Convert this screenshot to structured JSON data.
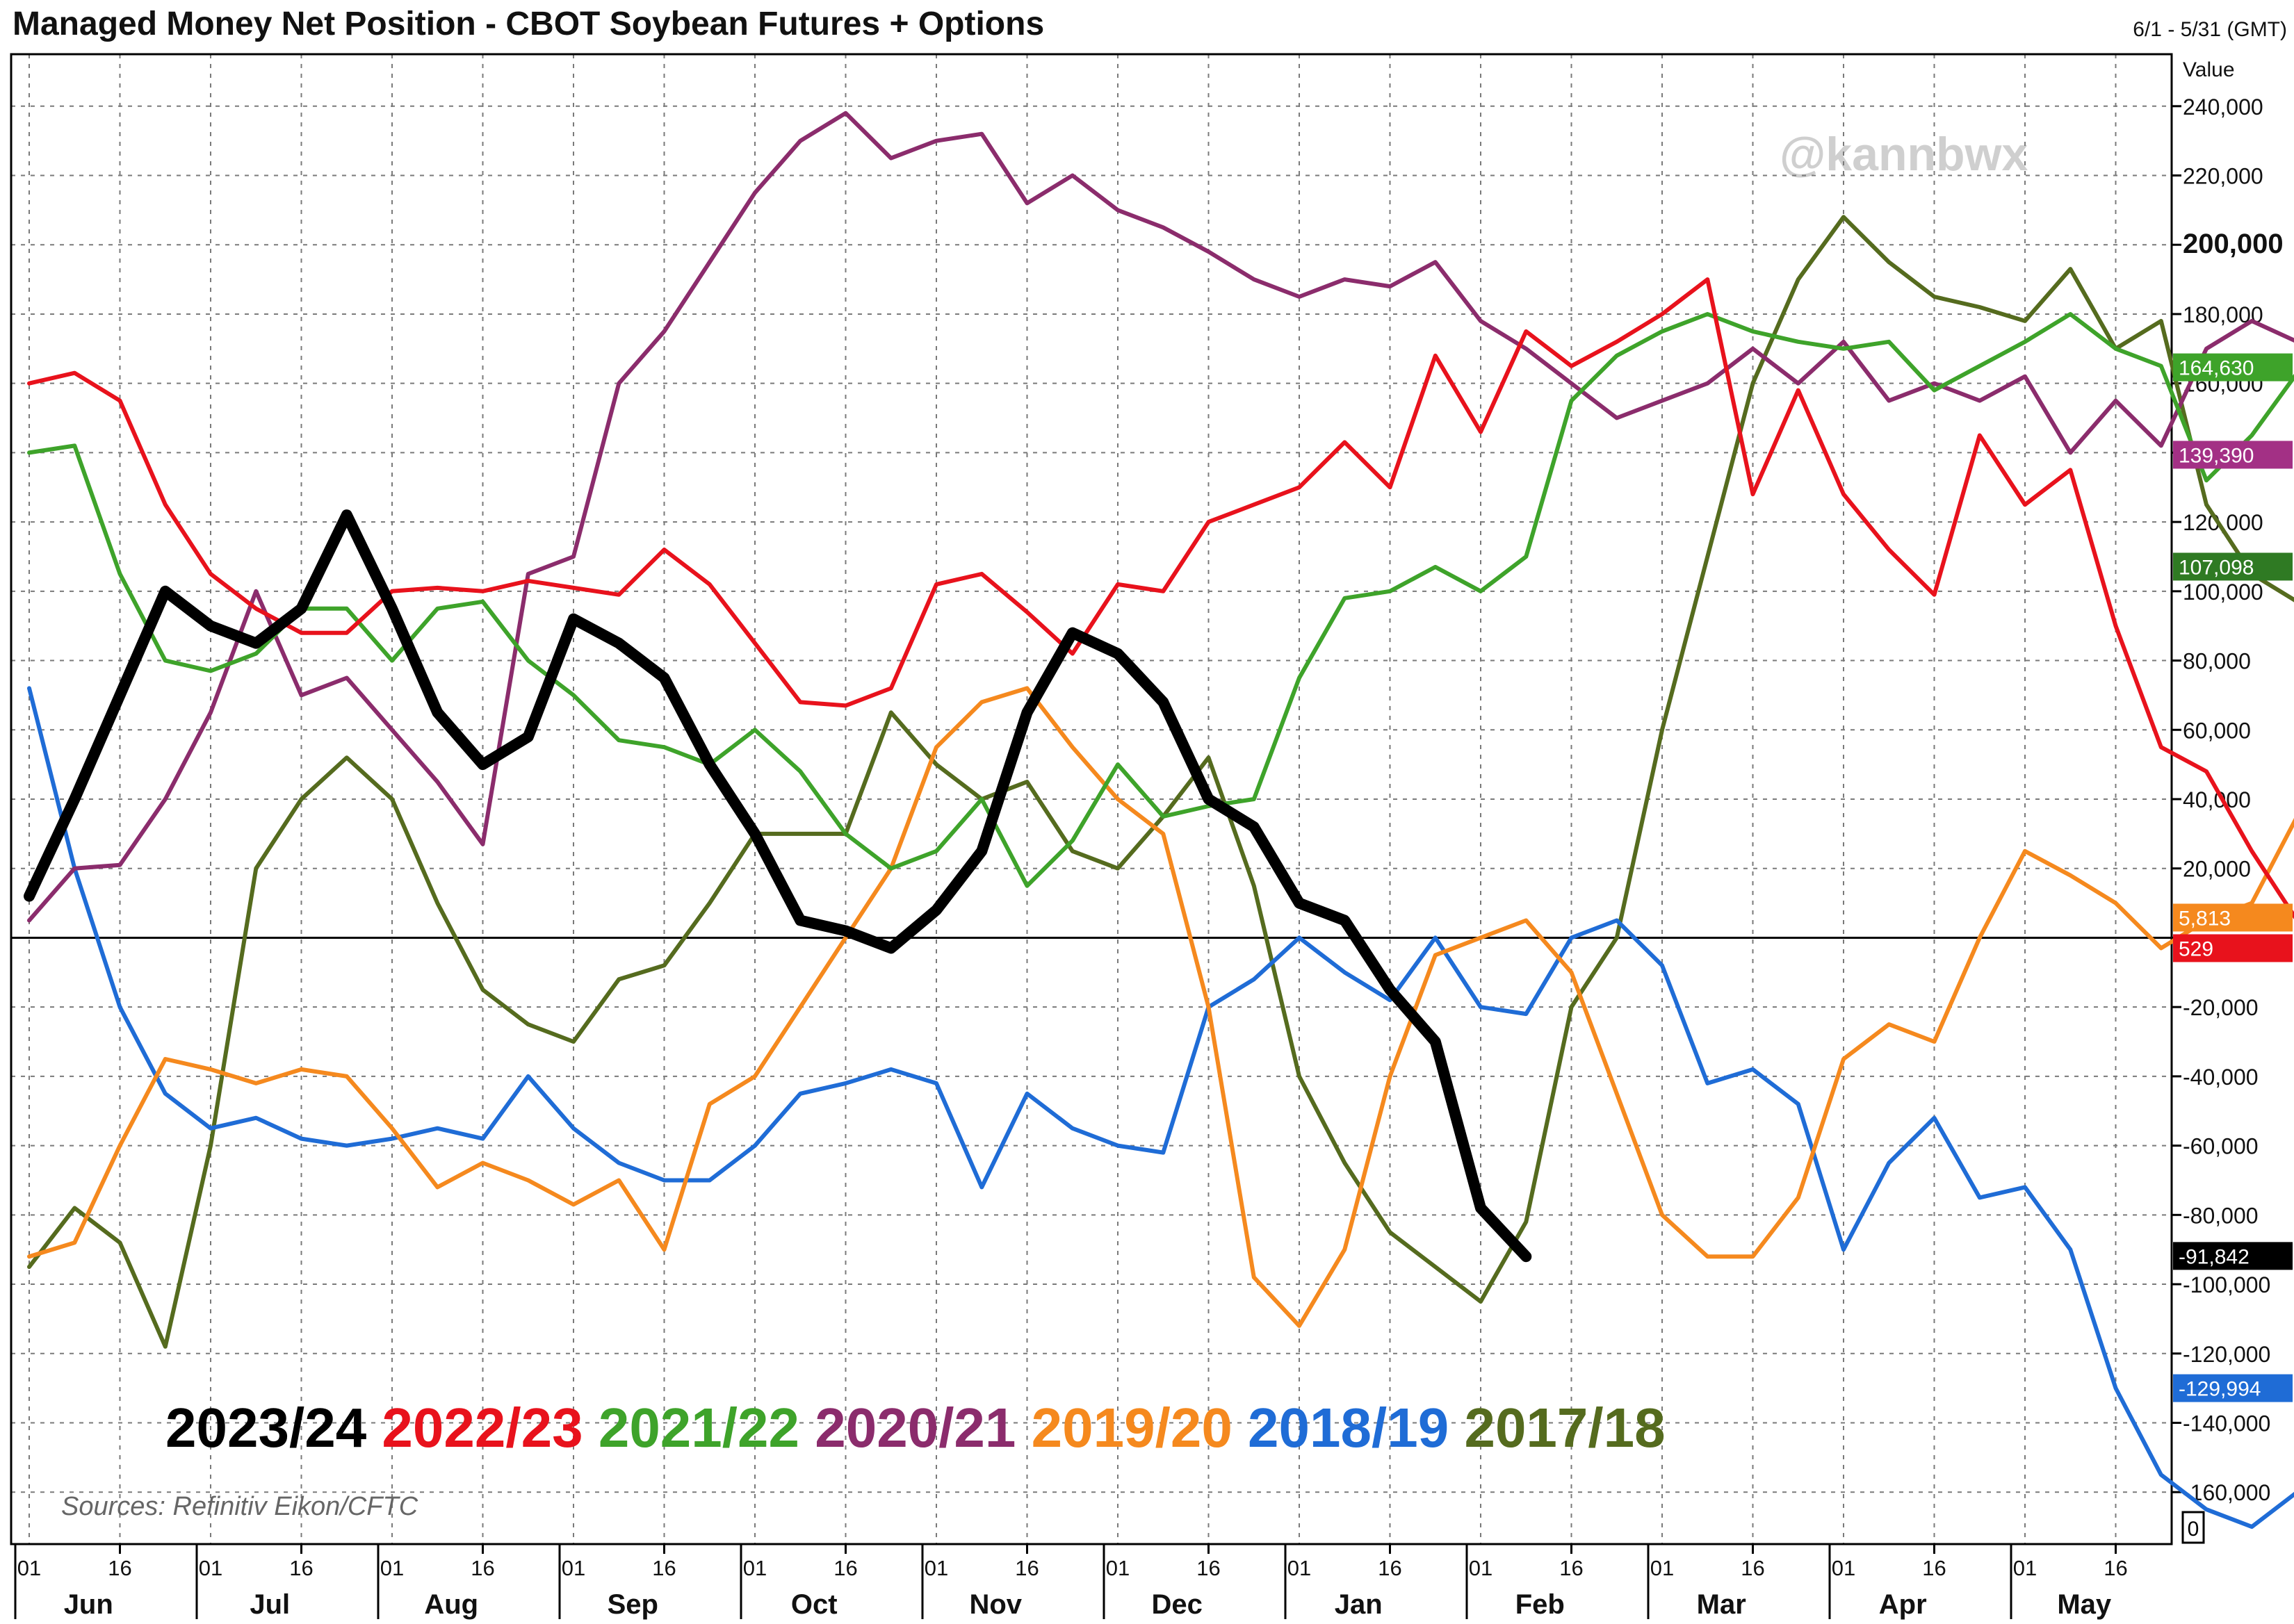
{
  "title": "Managed Money Net Position - CBOT Soybean Futures + Options",
  "date_range": "6/1 - 5/31 (GMT)",
  "value_label": "Value",
  "watermark": "@kannbwx",
  "source": "Sources: Refinitiv Eikon/CFTC",
  "bottom_badge": "0",
  "chart_data": {
    "type": "line",
    "ylim": [
      -175000,
      255000
    ],
    "y_ticks": [
      240000,
      220000,
      200000,
      180000,
      160000,
      140000,
      120000,
      100000,
      80000,
      60000,
      40000,
      20000,
      0,
      -20000,
      -40000,
      -60000,
      -80000,
      -100000,
      -120000,
      -140000,
      -160000
    ],
    "y_tick_labels": [
      "240,000",
      "220,000",
      "200,000",
      "180,000",
      "160,000",
      "140,000",
      "120,000",
      "100,000",
      "80,000",
      "60,000",
      "40,000",
      "20,000",
      "",
      "-20,000",
      "-40,000",
      "-60,000",
      "-80,000",
      "-100,000",
      "-120,000",
      "-140,000",
      "-160,000"
    ],
    "months": [
      "Jun",
      "Jul",
      "Aug",
      "Sep",
      "Oct",
      "Nov",
      "Dec",
      "Jan",
      "Feb",
      "Mar",
      "Apr",
      "May"
    ],
    "day_labels": [
      "01",
      "16"
    ],
    "series": [
      {
        "name": "2023/24",
        "color": "#000000",
        "width": 16,
        "values": [
          12000,
          40000,
          70000,
          100000,
          90000,
          85000,
          95000,
          122000,
          95000,
          65000,
          50000,
          58000,
          92000,
          85000,
          75000,
          50000,
          30000,
          5000,
          2000,
          -3000,
          8000,
          25000,
          65000,
          88000,
          82000,
          68000,
          40000,
          32000,
          10000,
          5000,
          -15000,
          -30000,
          -78000,
          -92000
        ]
      },
      {
        "name": "2022/23",
        "color": "#e8121c",
        "width": 6,
        "values": [
          160000,
          163000,
          155000,
          125000,
          105000,
          95000,
          88000,
          88000,
          100000,
          101000,
          100000,
          103000,
          101000,
          99000,
          112000,
          102000,
          85000,
          68000,
          67000,
          72000,
          102000,
          105000,
          94000,
          82000,
          102000,
          100000,
          120000,
          125000,
          130000,
          143000,
          130000,
          168000,
          146000,
          175000,
          165000,
          172000,
          180000,
          190000,
          128000,
          158000,
          128000,
          112000,
          99000,
          145000,
          125000,
          135000,
          90000,
          55000,
          48000,
          25000,
          5000,
          1000
        ]
      },
      {
        "name": "2021/22",
        "color": "#3ea32a",
        "width": 6,
        "values": [
          140000,
          142000,
          105000,
          80000,
          77000,
          82000,
          95000,
          95000,
          80000,
          95000,
          97000,
          80000,
          70000,
          57000,
          55000,
          50000,
          60000,
          48000,
          30000,
          20000,
          25000,
          40000,
          15000,
          28000,
          50000,
          35000,
          38000,
          40000,
          75000,
          98000,
          100000,
          107000,
          100000,
          110000,
          155000,
          168000,
          175000,
          180000,
          175000,
          172000,
          170000,
          172000,
          158000,
          165000,
          172000,
          180000,
          170000,
          165000,
          132000,
          145000,
          163000,
          164630
        ]
      },
      {
        "name": "2020/21",
        "color": "#8b2c6c",
        "width": 6,
        "values": [
          5000,
          20000,
          21000,
          40000,
          65000,
          100000,
          70000,
          75000,
          60000,
          45000,
          27000,
          105000,
          110000,
          160000,
          175000,
          195000,
          215000,
          230000,
          238000,
          225000,
          230000,
          232000,
          212000,
          220000,
          210000,
          205000,
          198000,
          190000,
          185000,
          190000,
          188000,
          195000,
          178000,
          170000,
          160000,
          150000,
          155000,
          160000,
          170000,
          160000,
          172000,
          155000,
          160000,
          155000,
          162000,
          140000,
          155000,
          142000,
          170000,
          178000,
          172000,
          178000,
          155000,
          139390
        ]
      },
      {
        "name": "2019/20",
        "color": "#f5891e",
        "width": 6,
        "values": [
          -92000,
          -88000,
          -60000,
          -35000,
          -38000,
          -42000,
          -38000,
          -40000,
          -55000,
          -72000,
          -65000,
          -70000,
          -77000,
          -70000,
          -90000,
          -48000,
          -40000,
          -20000,
          0,
          20000,
          55000,
          68000,
          72000,
          55000,
          40000,
          30000,
          -20000,
          -98000,
          -112000,
          -90000,
          -40000,
          -5000,
          0,
          5000,
          -10000,
          -45000,
          -80000,
          -92000,
          -92000,
          -75000,
          -35000,
          -25000,
          -30000,
          0,
          25000,
          18000,
          10000,
          -3000,
          5000,
          10000,
          35000,
          10000,
          5813
        ]
      },
      {
        "name": "2018/19",
        "color": "#1f6cd6",
        "width": 6,
        "values": [
          72000,
          20000,
          -20000,
          -45000,
          -55000,
          -52000,
          -58000,
          -60000,
          -58000,
          -55000,
          -58000,
          -40000,
          -55000,
          -65000,
          -70000,
          -70000,
          -60000,
          -45000,
          -42000,
          -38000,
          -42000,
          -72000,
          -45000,
          -55000,
          -60000,
          -62000,
          -20000,
          -12000,
          0,
          -10000,
          -18000,
          0,
          -20000,
          -22000,
          0,
          5000,
          -8000,
          -42000,
          -38000,
          -48000,
          -90000,
          -65000,
          -52000,
          -75000,
          -72000,
          -90000,
          -130000,
          -155000,
          -165000,
          -170000,
          -160000,
          -130000
        ]
      },
      {
        "name": "2017/18",
        "color": "#556b1e",
        "width": 6,
        "values": [
          -95000,
          -78000,
          -88000,
          -118000,
          -60000,
          20000,
          40000,
          52000,
          40000,
          10000,
          -15000,
          -25000,
          -30000,
          -12000,
          -8000,
          10000,
          30000,
          30000,
          30000,
          65000,
          50000,
          40000,
          45000,
          25000,
          20000,
          35000,
          52000,
          15000,
          -40000,
          -65000,
          -85000,
          -95000,
          -105000,
          -82000,
          -20000,
          0,
          60000,
          110000,
          160000,
          190000,
          208000,
          195000,
          185000,
          182000,
          178000,
          193000,
          170000,
          178000,
          125000,
          105000,
          97000,
          107098
        ]
      }
    ],
    "value_badges": [
      {
        "label": "164,630",
        "value": 164630,
        "bg": "#3ea32a",
        "fg": "#ffffff"
      },
      {
        "label": "139,390",
        "value": 139390,
        "bg": "#a33085",
        "fg": "#ffffff"
      },
      {
        "label": "107,098",
        "value": 107098,
        "bg": "#2f7a23",
        "fg": "#ffffff"
      },
      {
        "label": "5,813",
        "value": 5813,
        "bg": "#f5891e",
        "fg": "#ffffff"
      },
      {
        "label": "529",
        "value": 529,
        "bg": "#e8121c",
        "fg": "#ffffff"
      },
      {
        "label": "-91,842",
        "value": -91842,
        "bg": "#000000",
        "fg": "#ffffff"
      },
      {
        "label": "-129,994",
        "value": -129994,
        "bg": "#1f6cd6",
        "fg": "#ffffff"
      }
    ]
  }
}
